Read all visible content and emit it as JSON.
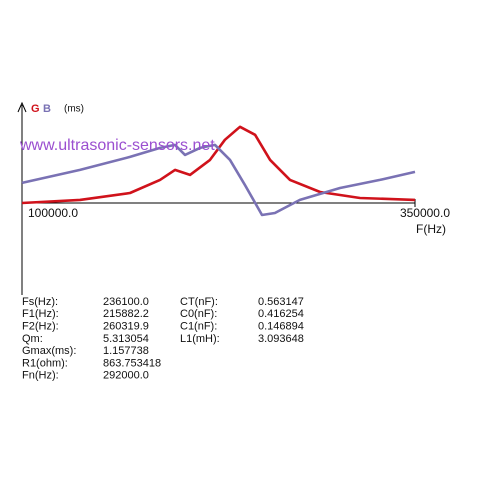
{
  "chart_data": {
    "type": "line",
    "x_label": "F(Hz)",
    "y_label": "(ms)",
    "watermark": "www.ultrasonic-sensors.net",
    "xlim": [
      100000,
      350000
    ],
    "ylim": [
      -1.4,
      1.49
    ],
    "xticks": [
      {
        "value": 100000,
        "label": "100000.0"
      },
      {
        "value": 350000,
        "label": "350000.0"
      }
    ],
    "series": [
      {
        "name": "G",
        "color": "#d0121b",
        "x": [
          100000,
          136900,
          168700,
          187800,
          197300,
          206900,
          219600,
          229100,
          238700,
          248300,
          257800,
          270500,
          289600,
          315000,
          350000
        ],
        "values": [
          0,
          0.046,
          0.152,
          0.35,
          0.503,
          0.427,
          0.655,
          0.96,
          1.158,
          1.036,
          0.655,
          0.35,
          0.167,
          0.076,
          0.046
        ]
      },
      {
        "name": "B",
        "color": "#7a72b4",
        "x": [
          100000,
          136900,
          168700,
          187800,
          197300,
          203700,
          213200,
          222800,
          232300,
          241800,
          252700,
          260900,
          276800,
          302300,
          327700,
          350000
        ],
        "values": [
          0.305,
          0.503,
          0.701,
          0.838,
          0.883,
          0.731,
          0.838,
          0.883,
          0.655,
          0.274,
          -0.183,
          -0.152,
          0.046,
          0.228,
          0.35,
          0.472
        ]
      }
    ]
  },
  "parameters": {
    "left": [
      [
        "Fs(Hz):",
        "236100.0"
      ],
      [
        "F1(Hz):",
        "215882.2"
      ],
      [
        "F2(Hz):",
        "260319.9"
      ],
      [
        "Qm:",
        "5.313054"
      ],
      [
        "Gmax(ms):",
        "1.157738"
      ],
      [
        "R1(ohm):",
        "863.753418"
      ],
      [
        "Fn(Hz):",
        "292000.0"
      ]
    ],
    "right": [
      [
        "CT(nF):",
        "0.563147"
      ],
      [
        "C0(nF):",
        "0.416254"
      ],
      [
        "C1(nF):",
        "0.146894"
      ],
      [
        "L1(mH):",
        "3.093648"
      ]
    ]
  }
}
